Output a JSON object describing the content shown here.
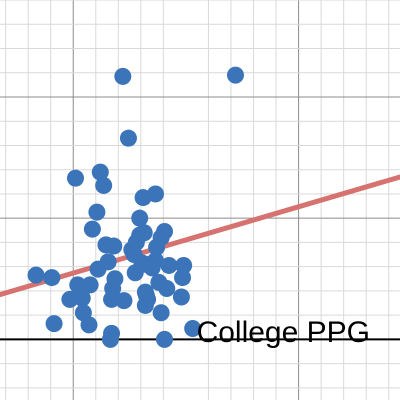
{
  "chart_data": {
    "type": "scatter",
    "title": "",
    "xlabel": "College PPG",
    "ylabel": "",
    "xlim": [
      -1.65,
      1.9
    ],
    "ylim": [
      -0.5,
      2.8
    ],
    "x_major_step": 1,
    "y_major_step": 1,
    "minor_step": 0.2,
    "grid": true,
    "point_color": "#3b74b8",
    "line_color": "#d6726f",
    "points": [
      [
        -0.56,
        2.17
      ],
      [
        0.44,
        2.18
      ],
      [
        -0.51,
        1.66
      ],
      [
        -0.98,
        1.33
      ],
      [
        -0.76,
        1.38
      ],
      [
        -0.73,
        1.27
      ],
      [
        -0.38,
        1.17
      ],
      [
        -0.27,
        1.2
      ],
      [
        -0.79,
        1.05
      ],
      [
        -0.83,
        0.91
      ],
      [
        -0.41,
        1.0
      ],
      [
        -0.37,
        0.88
      ],
      [
        -0.19,
        0.89
      ],
      [
        -0.71,
        0.78
      ],
      [
        -0.64,
        0.77
      ],
      [
        -0.41,
        0.86
      ],
      [
        -0.48,
        0.74
      ],
      [
        -0.44,
        0.8
      ],
      [
        -0.22,
        0.84
      ],
      [
        -1.33,
        0.53
      ],
      [
        -1.19,
        0.51
      ],
      [
        -0.78,
        0.58
      ],
      [
        -0.69,
        0.64
      ],
      [
        -0.46,
        0.7
      ],
      [
        -0.39,
        0.63
      ],
      [
        -0.26,
        0.76
      ],
      [
        -0.15,
        0.61
      ],
      [
        -0.27,
        0.65
      ],
      [
        -0.17,
        0.42
      ],
      [
        -0.02,
        0.61
      ],
      [
        -0.63,
        0.5
      ],
      [
        -0.96,
        0.45
      ],
      [
        -0.85,
        0.45
      ],
      [
        -0.92,
        0.34
      ],
      [
        -1.03,
        0.33
      ],
      [
        -0.45,
        0.55
      ],
      [
        -0.36,
        0.28
      ],
      [
        -0.66,
        0.33
      ],
      [
        -0.65,
        0.42
      ],
      [
        -0.55,
        0.32
      ],
      [
        -0.36,
        0.39
      ],
      [
        -0.35,
        0.36
      ],
      [
        -0.34,
        0.33
      ],
      [
        -0.24,
        0.47
      ],
      [
        -0.04,
        0.35
      ],
      [
        -0.91,
        0.22
      ],
      [
        -0.86,
        0.12
      ],
      [
        -1.17,
        0.13
      ],
      [
        -0.66,
        0.05
      ],
      [
        -0.67,
        0.0
      ],
      [
        -0.19,
        0.0
      ],
      [
        -0.22,
        0.22
      ],
      [
        -0.03,
        0.51
      ],
      [
        0.06,
        0.09
      ],
      [
        -0.36,
        0.62
      ],
      [
        -0.3,
        0.59
      ]
    ],
    "trend_line": {
      "x": [
        -1.65,
        1.9
      ],
      "y": [
        0.37,
        1.34
      ]
    }
  }
}
